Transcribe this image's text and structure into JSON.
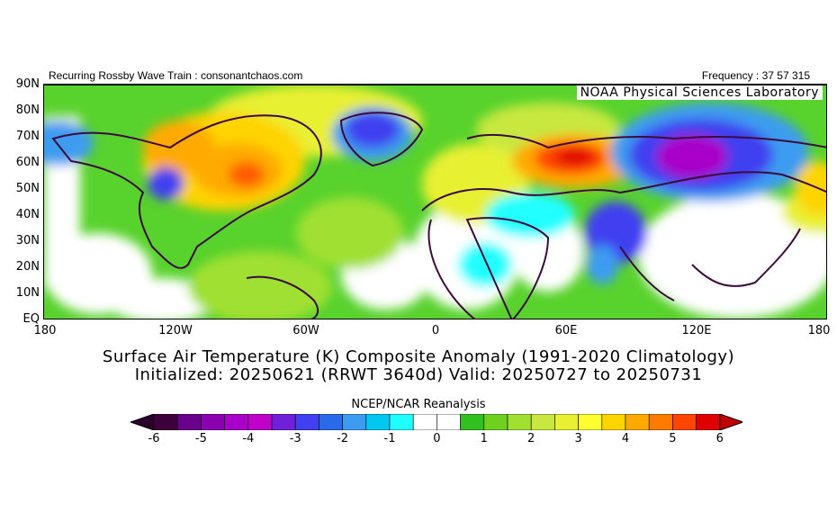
{
  "header": {
    "left_text": "Recurring Rossby Wave Train : consonantchaos.com",
    "right_text": "Frequency : 37 57 315",
    "lab_name": "NOAA Physical Sciences Laboratory"
  },
  "map": {
    "lat_labels": [
      "90N",
      "80N",
      "70N",
      "60N",
      "50N",
      "40N",
      "30N",
      "20N",
      "10N",
      "EQ"
    ],
    "lon_labels": [
      "180",
      "120W",
      "60W",
      "0",
      "60E",
      "120E",
      "180"
    ]
  },
  "titles": {
    "line1": "Surface Air Temperature (K) Composite Anomaly (1991-2020 Climatology)",
    "line2": "Initialized: 20250621 (RRWT 3640d) Valid: 20250727 to 20250731"
  },
  "colorbar": {
    "title": "NCEP/NCAR Reanalysis",
    "tick_labels": [
      "-6",
      "-5",
      "-4",
      "-3",
      "-2",
      "-1",
      "0",
      "1",
      "2",
      "3",
      "4",
      "5",
      "6"
    ],
    "colors": [
      "#3d003d",
      "#6a008a",
      "#8a00b0",
      "#a800c8",
      "#c000c8",
      "#7020d8",
      "#4040f0",
      "#2a6ae8",
      "#3d9cf0",
      "#00c8f0",
      "#20ffff",
      "#ffffff",
      "#ffffff",
      "#30c020",
      "#70d020",
      "#a0e030",
      "#c8e840",
      "#e8f030",
      "#ffff30",
      "#ffd400",
      "#ffaa00",
      "#ff7a00",
      "#ff4500",
      "#e00000"
    ],
    "low_end": "#2a002a",
    "high_end": "#c00000"
  }
}
